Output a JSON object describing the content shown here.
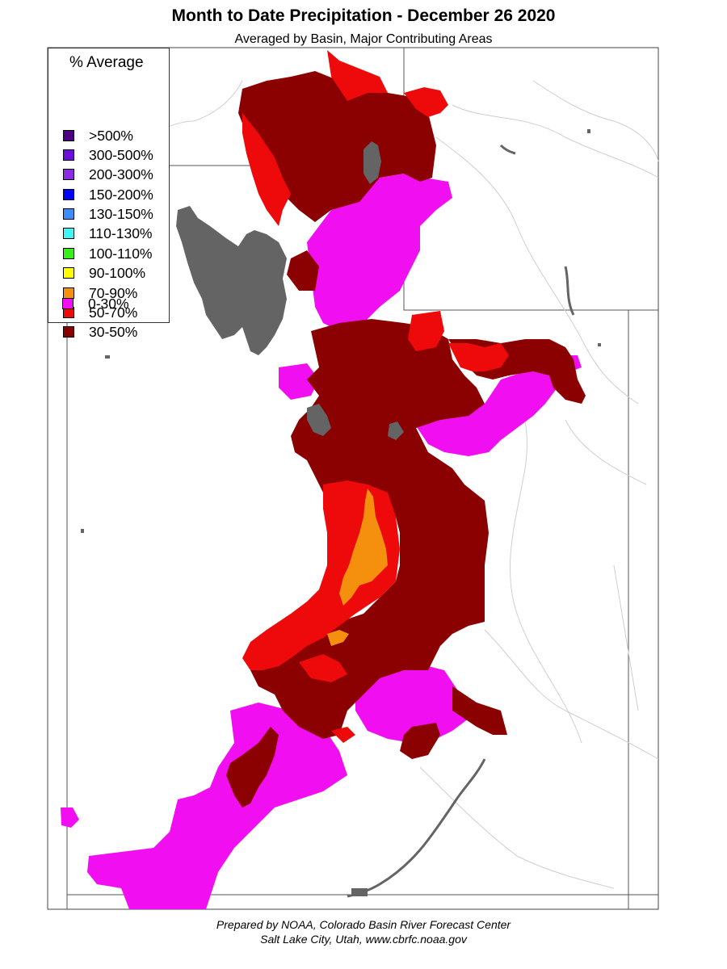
{
  "title": "Month to Date Precipitation - December 26 2020",
  "subtitle": "Averaged by Basin, Major Contributing Areas",
  "legend": {
    "title": "% Average",
    "items": [
      {
        "label": ">500%",
        "color": "#4b0082"
      },
      {
        "label": "300-500%",
        "color": "#6a0dd6"
      },
      {
        "label": "200-300%",
        "color": "#8a2be2"
      },
      {
        "label": "150-200%",
        "color": "#0000ff"
      },
      {
        "label": "130-150%",
        "color": "#3b8cff"
      },
      {
        "label": "110-130%",
        "color": "#40f5f5"
      },
      {
        "label": "100-110%",
        "color": "#38f018"
      },
      {
        "label": "90-100%",
        "color": "#ffff00"
      },
      {
        "label": "70-90%",
        "color": "#f5900e"
      },
      {
        "label": "50-70%",
        "color": "#ee0a0a"
      },
      {
        "label": "30-50%",
        "color": "#8b0000"
      },
      {
        "label": "0-30%",
        "color": "#f10ef1"
      }
    ]
  },
  "colors": {
    "water": "#646464",
    "basemap_lines": "#c8c8c8",
    "state_border": "#555555"
  },
  "footer": {
    "line1": "Prepared by NOAA, Colorado Basin River Forecast Center",
    "line2": "Salt Lake City, Utah, www.cbrfc.noaa.gov"
  }
}
